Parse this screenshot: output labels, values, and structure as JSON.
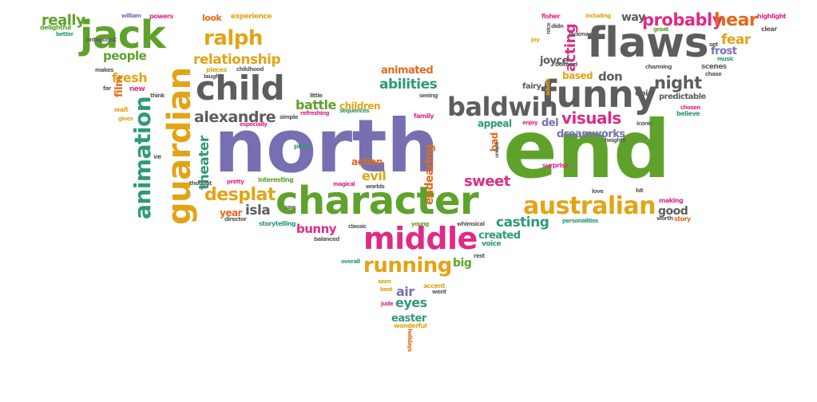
{
  "colors": {
    "green": "#5ea22b",
    "gold": "#e2a417",
    "gray": "#5d5d5d",
    "purple": "#7670b2",
    "pink": "#df2b86",
    "teal": "#2e9a78",
    "orange": "#e26a1b"
  },
  "words": [
    {
      "text": "north",
      "color": "purple"
    },
    {
      "text": "end",
      "color": "green"
    },
    {
      "text": "character",
      "color": "green"
    },
    {
      "text": "middle",
      "color": "pink"
    },
    {
      "text": "flaws",
      "color": "gray"
    },
    {
      "text": "funny",
      "color": "gray"
    },
    {
      "text": "guardian",
      "color": "gold"
    },
    {
      "text": "jack",
      "color": "green"
    },
    {
      "text": "child",
      "color": "gray"
    },
    {
      "text": "baldwin",
      "color": "gray"
    },
    {
      "text": "australian",
      "color": "gold"
    },
    {
      "text": "running",
      "color": "gold"
    },
    {
      "text": "animation",
      "color": "teal"
    },
    {
      "text": "ralph",
      "color": "gold"
    },
    {
      "text": "relationship",
      "color": "gold"
    },
    {
      "text": "desplat",
      "color": "gold"
    },
    {
      "text": "alexandre",
      "color": "gray"
    },
    {
      "text": "visuals",
      "color": "pink"
    },
    {
      "text": "dreamworks",
      "color": "purple"
    },
    {
      "text": "probably",
      "color": "pink"
    },
    {
      "text": "hear",
      "color": "orange"
    },
    {
      "text": "fear",
      "color": "gold"
    },
    {
      "text": "night",
      "color": "gray"
    },
    {
      "text": "frost",
      "color": "purple"
    },
    {
      "text": "acting",
      "color": "pink"
    },
    {
      "text": "really",
      "color": "green"
    },
    {
      "text": "people",
      "color": "green"
    },
    {
      "text": "fresh",
      "color": "gold"
    },
    {
      "text": "abilities",
      "color": "teal"
    },
    {
      "text": "battle",
      "color": "green"
    },
    {
      "text": "children",
      "color": "gold"
    },
    {
      "text": "animated",
      "color": "orange"
    },
    {
      "text": "based",
      "color": "gold"
    },
    {
      "text": "don",
      "color": "gray"
    },
    {
      "text": "joyce",
      "color": "gray"
    },
    {
      "text": "way",
      "color": "gray"
    },
    {
      "text": "theater",
      "color": "teal"
    },
    {
      "text": "isla",
      "color": "gray"
    },
    {
      "text": "year",
      "color": "orange"
    },
    {
      "text": "bunny",
      "color": "pink"
    },
    {
      "text": "sweet",
      "color": "pink"
    },
    {
      "text": "evil",
      "color": "gold"
    },
    {
      "text": "action",
      "color": "orange"
    },
    {
      "text": "endearing",
      "color": "orange"
    },
    {
      "text": "casting",
      "color": "teal"
    },
    {
      "text": "good",
      "color": "gray"
    },
    {
      "text": "created",
      "color": "teal"
    },
    {
      "text": "appeal",
      "color": "teal"
    },
    {
      "text": "del",
      "color": "purple"
    },
    {
      "text": "big",
      "color": "green"
    },
    {
      "text": "air",
      "color": "purple"
    },
    {
      "text": "eyes",
      "color": "teal"
    },
    {
      "text": "easter",
      "color": "teal"
    },
    {
      "text": "voice",
      "color": "teal"
    },
    {
      "text": "bad",
      "color": "orange"
    },
    {
      "text": "epic",
      "color": "gray"
    },
    {
      "text": "fairy",
      "color": "gray"
    },
    {
      "text": "predictable",
      "color": "gray"
    },
    {
      "text": "film",
      "color": "orange"
    },
    {
      "text": "look",
      "color": "orange"
    },
    {
      "text": "experience",
      "color": "gold"
    },
    {
      "text": "powers",
      "color": "pink"
    },
    {
      "text": "william",
      "color": "purple"
    },
    {
      "text": "delightful",
      "color": "green"
    },
    {
      "text": "better",
      "color": "teal"
    },
    {
      "text": "antagonist",
      "color": "gray"
    },
    {
      "text": "makes",
      "color": "gray"
    },
    {
      "text": "pieces",
      "color": "gold"
    },
    {
      "text": "childhood",
      "color": "gray"
    },
    {
      "text": "laugh",
      "color": "gray"
    },
    {
      "text": "new",
      "color": "pink"
    },
    {
      "text": "far",
      "color": "gray"
    },
    {
      "text": "think",
      "color": "gray"
    },
    {
      "text": "wait",
      "color": "gold"
    },
    {
      "text": "gives",
      "color": "gold"
    },
    {
      "text": "little",
      "color": "gray"
    },
    {
      "text": "simple",
      "color": "gray"
    },
    {
      "text": "refreshing",
      "color": "pink"
    },
    {
      "text": "especially",
      "color": "pink"
    },
    {
      "text": "sequences",
      "color": "teal"
    },
    {
      "text": "family",
      "color": "pink"
    },
    {
      "text": "seeing",
      "color": "gray"
    },
    {
      "text": "pitch",
      "color": "teal"
    },
    {
      "text": "thought",
      "color": "gray"
    },
    {
      "text": "pretty",
      "color": "pink"
    },
    {
      "text": "interesting",
      "color": "green"
    },
    {
      "text": "magical",
      "color": "pink"
    },
    {
      "text": "worlds",
      "color": "gray"
    },
    {
      "text": "director",
      "color": "gray"
    },
    {
      "text": "storytelling",
      "color": "teal"
    },
    {
      "text": "balanced",
      "color": "gray"
    },
    {
      "text": "classic",
      "color": "gray"
    },
    {
      "text": "young",
      "color": "green"
    },
    {
      "text": "whimsical",
      "color": "gray"
    },
    {
      "text": "overall",
      "color": "teal"
    },
    {
      "text": "rest",
      "color": "gray"
    },
    {
      "text": "seen",
      "color": "gold"
    },
    {
      "text": "best",
      "color": "gold"
    },
    {
      "text": "accent",
      "color": "gold"
    },
    {
      "text": "went",
      "color": "gray"
    },
    {
      "text": "jude",
      "color": "pink"
    },
    {
      "text": "wonderful",
      "color": "gold"
    },
    {
      "text": "holidays",
      "color": "orange"
    },
    {
      "text": "fisher",
      "color": "pink"
    },
    {
      "text": "didn",
      "color": "gray"
    },
    {
      "text": "nice",
      "color": "gray"
    },
    {
      "text": "jackman",
      "color": "gray"
    },
    {
      "text": "including",
      "color": "gold"
    },
    {
      "text": "highlight",
      "color": "pink"
    },
    {
      "text": "clear",
      "color": "gray"
    },
    {
      "text": "great",
      "color": "green"
    },
    {
      "text": "charming",
      "color": "gray"
    },
    {
      "text": "music",
      "color": "teal"
    },
    {
      "text": "scenes",
      "color": "gray"
    },
    {
      "text": "chase",
      "color": "gray"
    },
    {
      "text": "believe",
      "color": "teal"
    },
    {
      "text": "chosen",
      "color": "pink"
    },
    {
      "text": "iconic",
      "color": "gray"
    },
    {
      "text": "enjoy",
      "color": "pink"
    },
    {
      "text": "surprise",
      "color": "pink"
    },
    {
      "text": "love",
      "color": "gray"
    },
    {
      "text": "bit",
      "color": "gray"
    },
    {
      "text": "making",
      "color": "pink"
    },
    {
      "text": "worth",
      "color": "gray"
    },
    {
      "text": "story",
      "color": "orange"
    },
    {
      "text": "personalities",
      "color": "teal"
    },
    {
      "text": "unique",
      "color": "gray"
    },
    {
      "text": "adults",
      "color": "gold"
    },
    {
      "text": "heights",
      "color": "gray"
    },
    {
      "text": "beloved",
      "color": "gray"
    },
    {
      "text": "ve",
      "color": "gray"
    },
    {
      "text": "saw",
      "color": "gray"
    },
    {
      "text": "set",
      "color": "gray"
    },
    {
      "text": "joy",
      "color": "gold"
    }
  ]
}
